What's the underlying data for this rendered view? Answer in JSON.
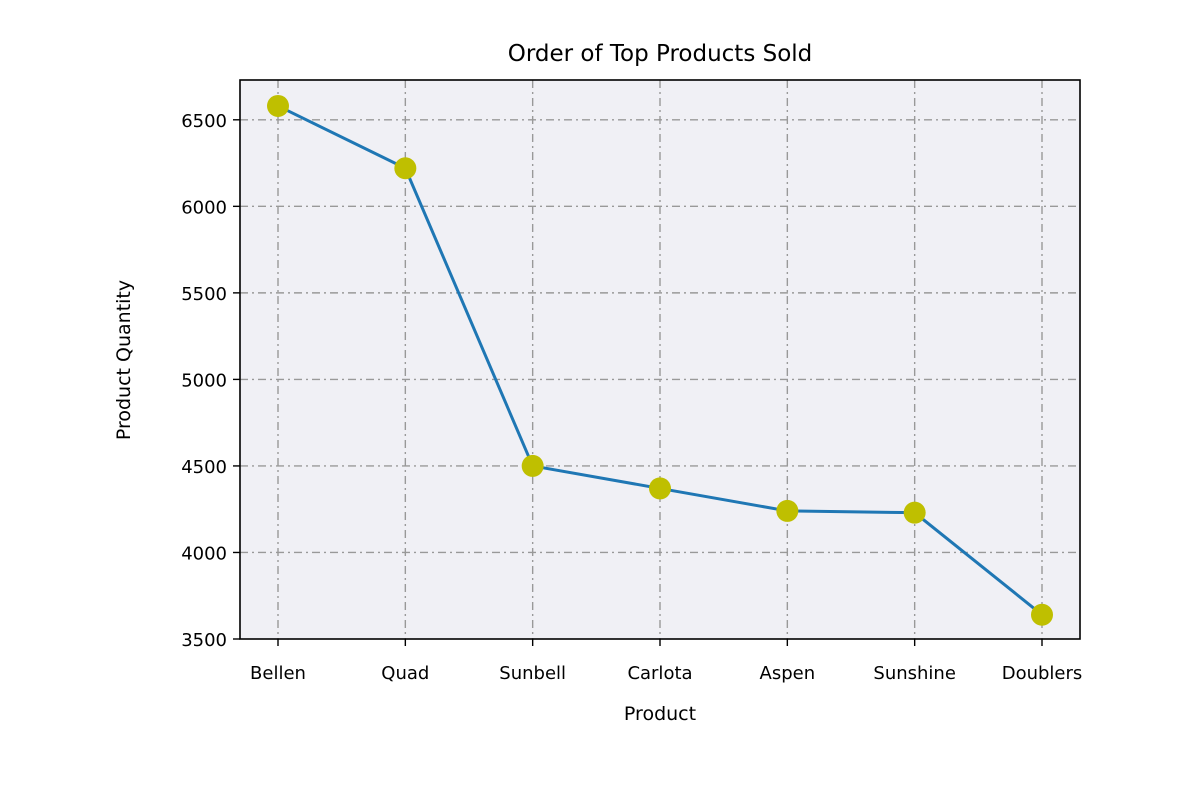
{
  "chart_data": {
    "type": "line",
    "title": "Order of Top Products Sold",
    "xlabel": "Product",
    "ylabel": "Product Quantity",
    "categories": [
      "Bellen",
      "Quad",
      "Sunbell",
      "Carlota",
      "Aspen",
      "Sunshine",
      "Doublers"
    ],
    "series": [
      {
        "values": [
          6580,
          6220,
          4500,
          4370,
          4240,
          4230,
          3640
        ]
      }
    ],
    "ylim": [
      3500,
      6730
    ],
    "yticks": [
      3500,
      4000,
      4500,
      5000,
      5500,
      6000,
      6500
    ],
    "grid": true,
    "colors": {
      "line": "#1f77b4",
      "marker": "#bfbf00",
      "plot_background": "#f0f0f5",
      "grid": "#999999",
      "axes": "#000000"
    }
  }
}
